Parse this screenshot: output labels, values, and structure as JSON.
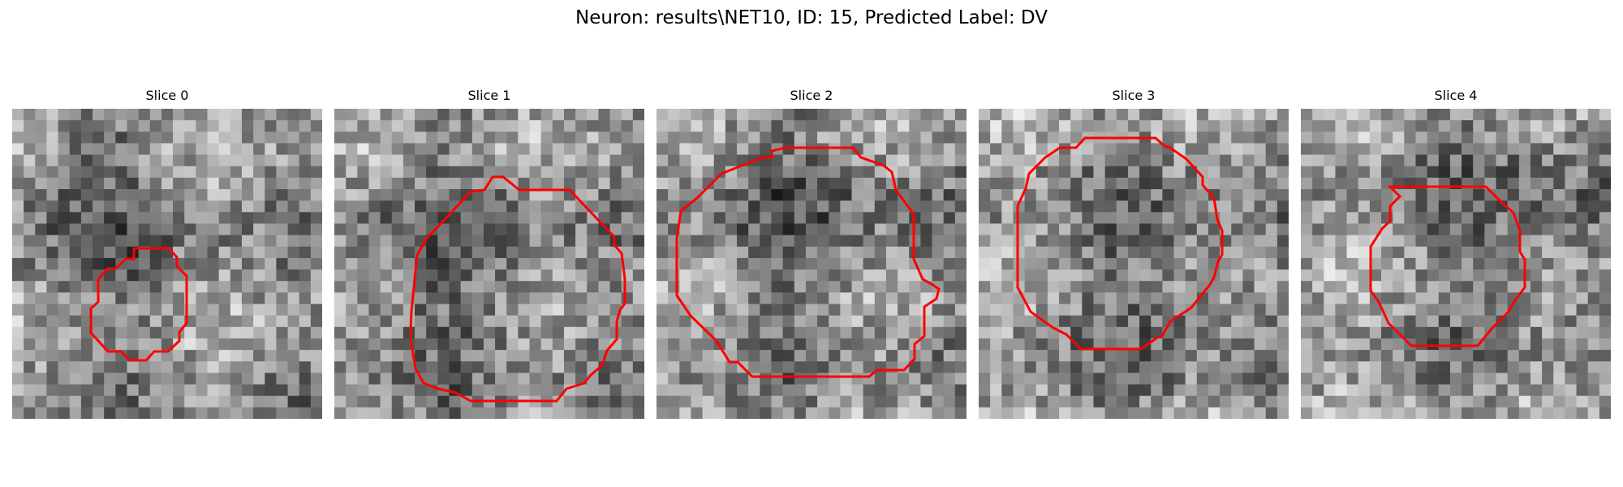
{
  "figure": {
    "title": "Neuron: results\\NET10, ID: 15, Predicted Label: DV",
    "contour_color": "#ff0000"
  },
  "slices": [
    {
      "label": "Slice 0"
    },
    {
      "label": "Slice 1"
    },
    {
      "label": "Slice 2"
    },
    {
      "label": "Slice 3"
    },
    {
      "label": "Slice 4"
    }
  ]
}
